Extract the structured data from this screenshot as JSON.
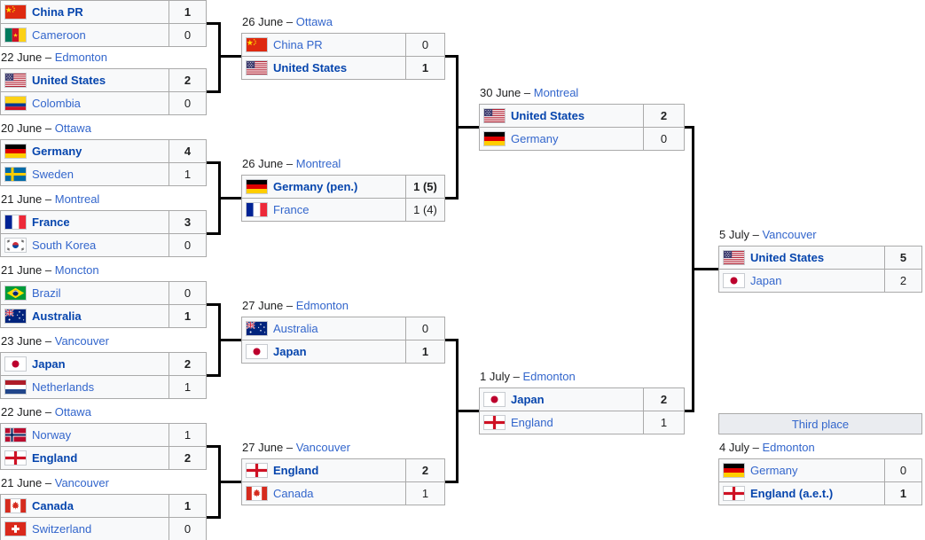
{
  "date_separator": " – ",
  "colors": {
    "link": "#3366cc",
    "winner_link": "#0645ad",
    "text": "#202122",
    "cell_background": "#f8f9fa",
    "cell_border": "#aaaaaa",
    "header_background": "#eaecf0",
    "connector": "#000000"
  },
  "bracket": {
    "rounds": {
      "round_of_16": {
        "matches": [
          {
            "date": null,
            "city": null,
            "teams": [
              {
                "name": "China PR",
                "flag": "china",
                "score": "1",
                "winner": true
              },
              {
                "name": "Cameroon",
                "flag": "cameroon",
                "score": "0",
                "winner": false
              }
            ]
          },
          {
            "date": "22 June",
            "city": "Edmonton",
            "teams": [
              {
                "name": "United States",
                "flag": "united-states",
                "score": "2",
                "winner": true
              },
              {
                "name": "Colombia",
                "flag": "colombia",
                "score": "0",
                "winner": false
              }
            ]
          },
          {
            "date": "20 June",
            "city": "Ottawa",
            "teams": [
              {
                "name": "Germany",
                "flag": "germany",
                "score": "4",
                "winner": true
              },
              {
                "name": "Sweden",
                "flag": "sweden",
                "score": "1",
                "winner": false
              }
            ]
          },
          {
            "date": "21 June",
            "city": "Montreal",
            "teams": [
              {
                "name": "France",
                "flag": "france",
                "score": "3",
                "winner": true
              },
              {
                "name": "South Korea",
                "flag": "south-korea",
                "score": "0",
                "winner": false
              }
            ]
          },
          {
            "date": "21 June",
            "city": "Moncton",
            "teams": [
              {
                "name": "Brazil",
                "flag": "brazil",
                "score": "0",
                "winner": false
              },
              {
                "name": "Australia",
                "flag": "australia",
                "score": "1",
                "winner": true
              }
            ]
          },
          {
            "date": "23 June",
            "city": "Vancouver",
            "teams": [
              {
                "name": "Japan",
                "flag": "japan",
                "score": "2",
                "winner": true
              },
              {
                "name": "Netherlands",
                "flag": "netherlands",
                "score": "1",
                "winner": false
              }
            ]
          },
          {
            "date": "22 June",
            "city": "Ottawa",
            "teams": [
              {
                "name": "Norway",
                "flag": "norway",
                "score": "1",
                "winner": false
              },
              {
                "name": "England",
                "flag": "england",
                "score": "2",
                "winner": true
              }
            ]
          },
          {
            "date": "21 June",
            "city": "Vancouver",
            "teams": [
              {
                "name": "Canada",
                "flag": "canada",
                "score": "1",
                "winner": true
              },
              {
                "name": "Switzerland",
                "flag": "switzerland",
                "score": "0",
                "winner": false
              }
            ]
          }
        ]
      },
      "quarterfinals": {
        "matches": [
          {
            "date": "26 June",
            "city": "Ottawa",
            "teams": [
              {
                "name": "China PR",
                "flag": "china",
                "score": "0",
                "winner": false
              },
              {
                "name": "United States",
                "flag": "united-states",
                "score": "1",
                "winner": true
              }
            ]
          },
          {
            "date": "26 June",
            "city": "Montreal",
            "teams": [
              {
                "name": "Germany (pen.)",
                "flag": "germany",
                "score": "1 (5)",
                "winner": true
              },
              {
                "name": "France",
                "flag": "france",
                "score": "1 (4)",
                "winner": false
              }
            ]
          },
          {
            "date": "27 June",
            "city": "Edmonton",
            "teams": [
              {
                "name": "Australia",
                "flag": "australia",
                "score": "0",
                "winner": false
              },
              {
                "name": "Japan",
                "flag": "japan",
                "score": "1",
                "winner": true
              }
            ]
          },
          {
            "date": "27 June",
            "city": "Vancouver",
            "teams": [
              {
                "name": "England",
                "flag": "england",
                "score": "2",
                "winner": true
              },
              {
                "name": "Canada",
                "flag": "canada",
                "score": "1",
                "winner": false
              }
            ]
          }
        ]
      },
      "semifinals": {
        "matches": [
          {
            "date": "30 June",
            "city": "Montreal",
            "teams": [
              {
                "name": "United States",
                "flag": "united-states",
                "score": "2",
                "winner": true
              },
              {
                "name": "Germany",
                "flag": "germany",
                "score": "0",
                "winner": false
              }
            ]
          },
          {
            "date": "1 July",
            "city": "Edmonton",
            "teams": [
              {
                "name": "Japan",
                "flag": "japan",
                "score": "2",
                "winner": true
              },
              {
                "name": "England",
                "flag": "england",
                "score": "1",
                "winner": false
              }
            ]
          }
        ]
      },
      "final": {
        "matches": [
          {
            "date": "5 July",
            "city": "Vancouver",
            "teams": [
              {
                "name": "United States",
                "flag": "united-states",
                "score": "5",
                "winner": true
              },
              {
                "name": "Japan",
                "flag": "japan",
                "score": "2",
                "winner": false
              }
            ]
          }
        ]
      },
      "third_place": {
        "label": "Third place",
        "matches": [
          {
            "date": "4 July",
            "city": "Edmonton",
            "teams": [
              {
                "name": "Germany",
                "flag": "germany",
                "score": "0",
                "winner": false
              },
              {
                "name": "England (a.e.t.)",
                "flag": "england",
                "score": "1",
                "winner": true
              }
            ]
          }
        ]
      }
    }
  }
}
